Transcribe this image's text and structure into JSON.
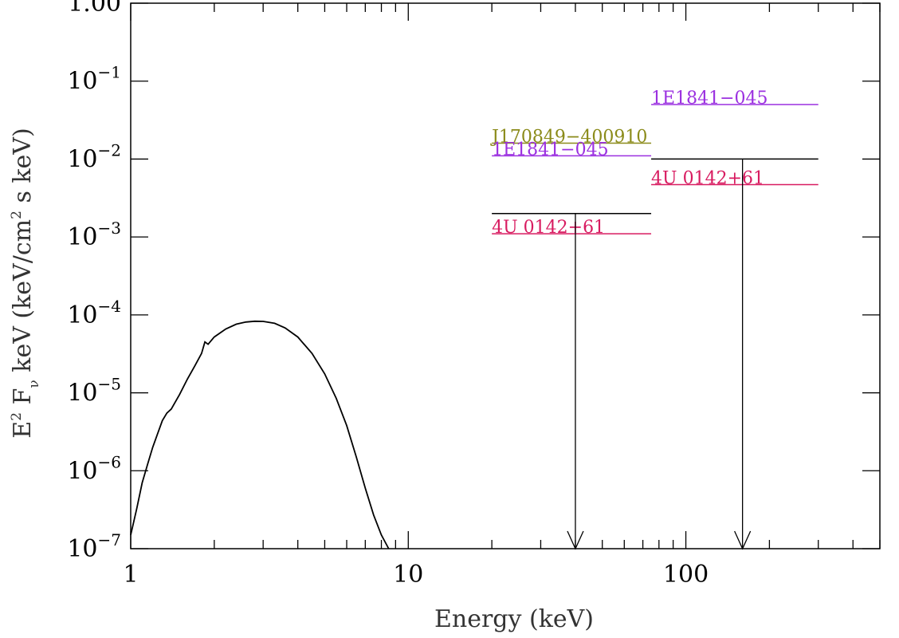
{
  "chart_data": {
    "type": "line",
    "title": "",
    "xlabel": "Energy (keV)",
    "ylabel": {
      "prefix": "E",
      "sup": "2",
      "mid": " F",
      "sub": "ν",
      "suffix": " keV (keV/cm",
      "sup2": "2",
      "end": " s keV)"
    },
    "xscale": "log",
    "yscale": "log",
    "xlim": [
      1,
      500
    ],
    "ylim": [
      1e-07,
      1.0
    ],
    "x_ticks": [
      {
        "value": 1,
        "label": "1"
      },
      {
        "value": 10,
        "label": "10"
      },
      {
        "value": 100,
        "label": "100"
      }
    ],
    "y_ticks": [
      {
        "value": 1e-07,
        "base": "10",
        "exp": "−7"
      },
      {
        "value": 1e-06,
        "base": "10",
        "exp": "−6"
      },
      {
        "value": 1e-05,
        "base": "10",
        "exp": "−5"
      },
      {
        "value": 0.0001,
        "base": "10",
        "exp": "−4"
      },
      {
        "value": 0.001,
        "base": "10",
        "exp": "−3"
      },
      {
        "value": 0.01,
        "base": "10",
        "exp": "−2"
      },
      {
        "value": 0.1,
        "base": "10",
        "exp": "−1"
      },
      {
        "value": 1.0,
        "base": "1.00",
        "exp": ""
      }
    ],
    "spectrum": {
      "color": "#000000",
      "points": [
        [
          1.0,
          1.5e-07
        ],
        [
          1.05,
          3.2e-07
        ],
        [
          1.1,
          7e-07
        ],
        [
          1.15,
          1.2e-06
        ],
        [
          1.2,
          2e-06
        ],
        [
          1.25,
          3e-06
        ],
        [
          1.3,
          4.4e-06
        ],
        [
          1.35,
          5.5e-06
        ],
        [
          1.4,
          6.2e-06
        ],
        [
          1.5,
          9.5e-06
        ],
        [
          1.6,
          1.5e-05
        ],
        [
          1.7,
          2.2e-05
        ],
        [
          1.8,
          3.2e-05
        ],
        [
          1.85,
          4.5e-05
        ],
        [
          1.9,
          4.2e-05
        ],
        [
          2.0,
          5.2e-05
        ],
        [
          2.2,
          6.6e-05
        ],
        [
          2.4,
          7.6e-05
        ],
        [
          2.6,
          8.1e-05
        ],
        [
          2.8,
          8.3e-05
        ],
        [
          3.0,
          8.25e-05
        ],
        [
          3.3,
          7.8e-05
        ],
        [
          3.6,
          6.8e-05
        ],
        [
          4.0,
          5.2e-05
        ],
        [
          4.5,
          3.2e-05
        ],
        [
          5.0,
          1.75e-05
        ],
        [
          5.5,
          8.5e-06
        ],
        [
          6.0,
          3.8e-06
        ],
        [
          6.5,
          1.5e-06
        ],
        [
          7.0,
          6e-07
        ],
        [
          7.5,
          2.7e-07
        ],
        [
          8.0,
          1.5e-07
        ],
        [
          8.5,
          8e-08
        ]
      ]
    },
    "upper_limits": [
      {
        "x": [
          20,
          75
        ],
        "y": 0.002,
        "arrow_x": 40,
        "color": "#000000"
      },
      {
        "x": [
          75,
          300
        ],
        "y": 0.01,
        "arrow_x": 160,
        "color": "#000000"
      }
    ],
    "reference_levels": [
      {
        "label": "J170849−400910",
        "x": [
          20,
          75
        ],
        "y": 0.016,
        "color": "#8b8b1a"
      },
      {
        "label": "1E1841−045",
        "x": [
          20,
          75
        ],
        "y": 0.011,
        "color": "#9b30e0"
      },
      {
        "label": "4U 0142+61",
        "x": [
          20,
          75
        ],
        "y": 0.0011,
        "color": "#d81b60"
      },
      {
        "label": "1E1841−045",
        "x": [
          75,
          300
        ],
        "y": 0.05,
        "color": "#9b30e0"
      },
      {
        "label": "4U 0142+61",
        "x": [
          75,
          300
        ],
        "y": 0.0047,
        "color": "#d81b60"
      }
    ]
  }
}
